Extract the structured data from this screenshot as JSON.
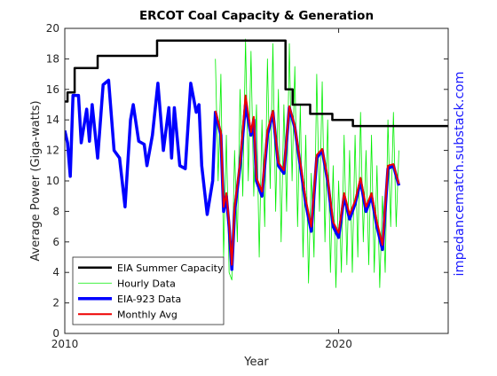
{
  "chart_data": {
    "type": "line",
    "title": "ERCOT Coal Capacity & Generation",
    "xlabel": "Year",
    "ylabel": "Average Power (Giga-watts)",
    "annotation": "impedancematch.substack.com",
    "annotation_color": "#1a1aff",
    "xlim": [
      2010,
      2024
    ],
    "xticks": [
      2010,
      2020
    ],
    "ylim": [
      0,
      20
    ],
    "yticks": [
      0,
      2,
      4,
      6,
      8,
      10,
      12,
      14,
      16,
      18,
      20
    ],
    "legend": "lower left",
    "series": [
      {
        "name": "EIA Summer Capacity",
        "color": "#000000",
        "line_width": 2.5,
        "x": [
          2010,
          2010.1,
          2010.1,
          2010.36,
          2010.36,
          2011.2,
          2011.2,
          2013.37,
          2013.37,
          2018.06,
          2018.06,
          2018.32,
          2018.32,
          2018.96,
          2018.96,
          2019.77,
          2019.77,
          2020.52,
          2020.52,
          2024
        ],
        "values": [
          15.2,
          15.2,
          15.8,
          15.8,
          17.4,
          17.4,
          18.2,
          18.2,
          19.2,
          19.2,
          16.0,
          16.0,
          15.0,
          15.0,
          14.4,
          14.4,
          14.0,
          14.0,
          13.6,
          13.6
        ]
      },
      {
        "name": "Hourly Data",
        "color": "#00ee00",
        "line_width": 0.8,
        "x": [
          2015.5,
          2015.6,
          2015.7,
          2015.8,
          2015.9,
          2016.0,
          2016.1,
          2016.2,
          2016.3,
          2016.4,
          2016.5,
          2016.6,
          2016.7,
          2016.8,
          2016.9,
          2017.0,
          2017.1,
          2017.2,
          2017.3,
          2017.4,
          2017.5,
          2017.6,
          2017.7,
          2017.8,
          2017.9,
          2018.0,
          2018.1,
          2018.2,
          2018.3,
          2018.4,
          2018.5,
          2018.6,
          2018.7,
          2018.8,
          2018.9,
          2019.0,
          2019.1,
          2019.2,
          2019.3,
          2019.4,
          2019.5,
          2019.6,
          2019.7,
          2019.8,
          2019.9,
          2020.0,
          2020.1,
          2020.2,
          2020.3,
          2020.4,
          2020.5,
          2020.6,
          2020.7,
          2020.8,
          2020.9,
          2021.0,
          2021.1,
          2021.2,
          2021.3,
          2021.4,
          2021.5,
          2021.6,
          2021.7,
          2021.8,
          2021.9,
          2022.0,
          2022.1,
          2022.2
        ],
        "values": [
          18,
          10,
          17,
          5,
          13,
          4,
          3.5,
          12,
          6,
          16,
          9,
          19.3,
          10,
          18.5,
          9,
          15,
          5,
          14,
          7,
          18,
          9.5,
          19,
          8,
          16,
          6,
          15,
          8,
          19,
          10,
          17.5,
          7,
          15,
          5,
          13,
          3.3,
          10.5,
          5,
          17,
          8,
          16.5,
          6,
          14,
          4,
          11,
          3,
          10,
          4,
          13,
          4.5,
          12,
          4,
          13,
          5,
          14.5,
          6,
          12,
          4.5,
          13,
          4,
          11,
          3,
          9,
          4,
          14,
          7,
          14.5,
          7,
          12
        ]
      },
      {
        "name": "EIA-923 Data",
        "color": "#0000ff",
        "line_width": 3.5,
        "x": [
          2010.0,
          2010.1,
          2010.2,
          2010.3,
          2010.5,
          2010.6,
          2010.8,
          2010.9,
          2011.0,
          2011.2,
          2011.4,
          2011.6,
          2011.8,
          2012.0,
          2012.2,
          2012.4,
          2012.5,
          2012.7,
          2012.9,
          2013.0,
          2013.2,
          2013.4,
          2013.6,
          2013.8,
          2013.9,
          2014.0,
          2014.2,
          2014.4,
          2014.6,
          2014.8,
          2014.9,
          2015.0,
          2015.2,
          2015.4,
          2015.5,
          2015.7,
          2015.8,
          2015.9,
          2016.0,
          2016.1,
          2016.2,
          2016.4,
          2016.6,
          2016.8,
          2016.9,
          2017.0,
          2017.2,
          2017.4,
          2017.6,
          2017.8,
          2018.0,
          2018.2,
          2018.4,
          2018.6,
          2018.8,
          2019.0,
          2019.2,
          2019.4,
          2019.6,
          2019.8,
          2020.0,
          2020.2,
          2020.4,
          2020.6,
          2020.8,
          2021.0,
          2021.2,
          2021.4,
          2021.6,
          2021.8,
          2022.0,
          2022.2
        ],
        "values": [
          13.3,
          12.5,
          10.3,
          15.6,
          15.6,
          12.5,
          14.7,
          12.6,
          15.0,
          11.5,
          16.3,
          16.6,
          12.0,
          11.5,
          8.3,
          14.0,
          15.0,
          12.6,
          12.4,
          11.0,
          13.0,
          16.4,
          12.0,
          14.8,
          11.5,
          14.8,
          11.0,
          10.8,
          16.4,
          14.5,
          15.0,
          11.0,
          7.8,
          10.0,
          14.5,
          13.0,
          8.0,
          9.0,
          7.0,
          4.2,
          8.0,
          11.0,
          15.0,
          13.0,
          14.0,
          10.0,
          9.0,
          13.0,
          14.5,
          11.0,
          10.5,
          14.8,
          13.5,
          11.0,
          8.5,
          6.7,
          11.5,
          12.0,
          10.0,
          7.0,
          6.3,
          9.0,
          7.5,
          8.5,
          10.0,
          8.0,
          9.0,
          7.0,
          5.5,
          10.8,
          11.0,
          9.7
        ]
      },
      {
        "name": "Monthly Avg",
        "color": "#ee0000",
        "line_width": 2,
        "x": [
          2015.5,
          2015.7,
          2015.8,
          2015.9,
          2016.0,
          2016.1,
          2016.2,
          2016.4,
          2016.6,
          2016.8,
          2016.9,
          2017.0,
          2017.2,
          2017.4,
          2017.6,
          2017.8,
          2018.0,
          2018.2,
          2018.4,
          2018.6,
          2018.8,
          2019.0,
          2019.2,
          2019.4,
          2019.6,
          2019.8,
          2020.0,
          2020.2,
          2020.4,
          2020.6,
          2020.8,
          2021.0,
          2021.2,
          2021.4,
          2021.6,
          2021.8,
          2022.0,
          2022.2
        ],
        "values": [
          14.6,
          13.2,
          8.3,
          9.2,
          7.2,
          4.5,
          8.3,
          11.2,
          15.6,
          13.2,
          14.2,
          10.2,
          9.3,
          13.3,
          14.6,
          11.2,
          10.7,
          14.9,
          13.6,
          11.2,
          8.8,
          7.0,
          11.7,
          12.1,
          10.2,
          7.3,
          6.6,
          9.2,
          7.8,
          8.7,
          10.2,
          8.3,
          9.2,
          7.3,
          5.8,
          11.0,
          11.1,
          9.8
        ]
      }
    ]
  }
}
